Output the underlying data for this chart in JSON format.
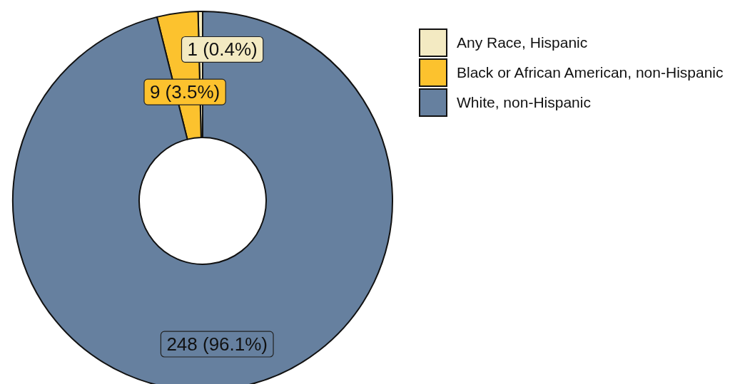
{
  "chart_data": {
    "type": "donut",
    "categories": [
      "Any Race, Hispanic",
      "Black or African American, non-Hispanic",
      "White, non-Hispanic"
    ],
    "values": [
      1,
      9,
      248
    ],
    "colors": [
      "#f3eac2",
      "#fcc22e",
      "#66809f"
    ],
    "value_labels": [
      "1 (0.4%)",
      "9 (3.5%)",
      "248 (96.1%)"
    ],
    "legend": "top right"
  }
}
